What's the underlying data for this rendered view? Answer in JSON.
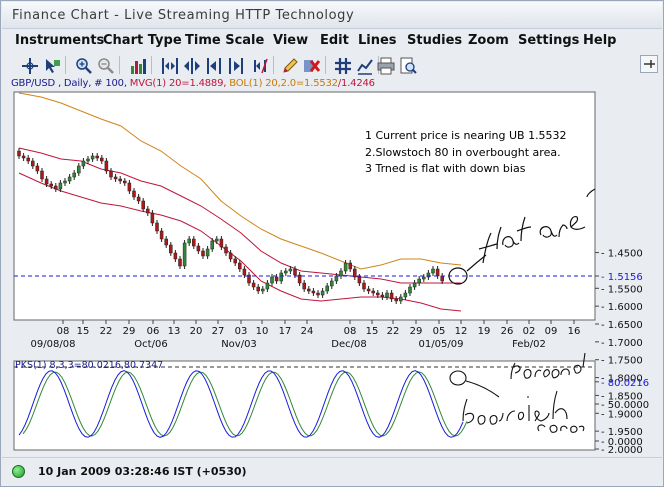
{
  "window": {
    "title": "Finance Chart - Live Streaming HTTP Technology"
  },
  "menu": {
    "items": [
      "Instruments",
      "Chart Type",
      "Time Scale",
      "View",
      "Edit",
      "Lines",
      "Studies",
      "Zoom",
      "Settings",
      "Help"
    ]
  },
  "toolbar": {
    "icons": [
      "crosshair-icon",
      "arrow-pan-icon",
      "zoom-in-icon",
      "zoom-out-icon",
      "bar-chart-icon",
      "timescale-compress-icon",
      "timescale-expand-icon",
      "timescale-left-icon",
      "timescale-right-icon",
      "pencil-edit-icon",
      "eraser-icon",
      "delete-lines-icon",
      "grid-icon",
      "studies-icon",
      "print-icon",
      "print-preview-icon",
      "pin-icon"
    ]
  },
  "info": {
    "symbol": "GBP/USD , Daily, # 100,",
    "mvg": "MVG(1) 20=1.4889,",
    "bol": "BOL(1) 20,2.0=1.5532",
    "bol_low": "/1.4246",
    "colors": {
      "symbol": "#1a1a8c",
      "mvg": "#c0143c",
      "bol": "#c87a00",
      "bol_low": "#c0143c"
    }
  },
  "annotations": {
    "note1": "1 Current price is nearing UB 1.5532",
    "note2": "2.Slowstoch 80 in overbought area.",
    "note3": "3 Trned is flat with down bias",
    "handwritten_price": "Flat area",
    "handwritten_stoch_1": "Peaked",
    "handwritten_stoch_2": "bearish cross"
  },
  "price_axis": {
    "ticks": [
      "2.0000",
      "1.9500",
      "1.9000",
      "1.8500",
      "1.8000",
      "1.7500",
      "1.7000",
      "1.6500",
      "1.6000",
      "1.5500",
      "1.5156",
      "1.4500"
    ]
  },
  "time_axis": {
    "day_labels": [
      "08",
      "15",
      "22",
      "29",
      "06",
      "13",
      "20",
      "27",
      "03",
      "10",
      "17",
      "24",
      "08",
      "15",
      "22",
      "29",
      "05",
      "12",
      "19",
      "26",
      "02",
      "09",
      "16"
    ],
    "month_labels": [
      "09/08/08",
      "Oct/06",
      "Nov/03",
      "Dec/08",
      "01/05/09",
      "Feb/02"
    ]
  },
  "stoch": {
    "label": "PKS(1) 8,3,3=80.0216,80.7347",
    "current": "80.0216",
    "ticks": [
      "50.0000",
      "0.0000"
    ]
  },
  "status": {
    "text": "10 Jan 2009 03:28:46 IST (+0530)",
    "connected_color": "#2ab42a"
  },
  "chart_data": {
    "type": "candlestick",
    "symbol": "GBP/USD",
    "interval": "Daily",
    "ylim": [
      1.4,
      2.02
    ],
    "current_price_line": 1.5156,
    "series": [
      {
        "name": "MVG(1) 20",
        "color": "#c0143c",
        "last": 1.4889
      },
      {
        "name": "BOL(1) 20,2.0 upper",
        "color": "#c87a00",
        "last": 1.5532
      },
      {
        "name": "BOL(1) 20,2.0 lower",
        "color": "#c0143c",
        "last": 1.4246
      }
    ],
    "stochastic": {
      "name": "PKS(1) 8,3,3",
      "k_last": 80.0216,
      "d_last": 80.7347,
      "ylim": [
        0,
        100
      ]
    }
  }
}
